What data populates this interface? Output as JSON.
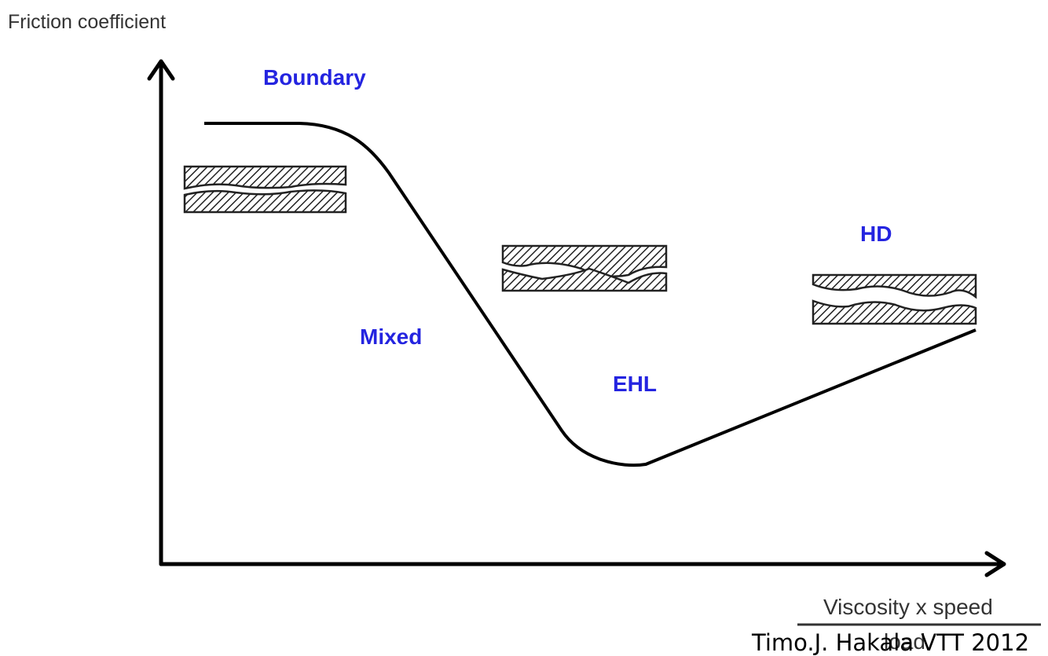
{
  "axes": {
    "y_label": "Friction coefficient",
    "x_label_numerator": "Viscosity x speed",
    "x_label_denominator": "load"
  },
  "regions": [
    "Boundary",
    "Mixed",
    "EHL",
    "HD"
  ],
  "credit": "Timo.J. Hakala VTT 2012"
}
